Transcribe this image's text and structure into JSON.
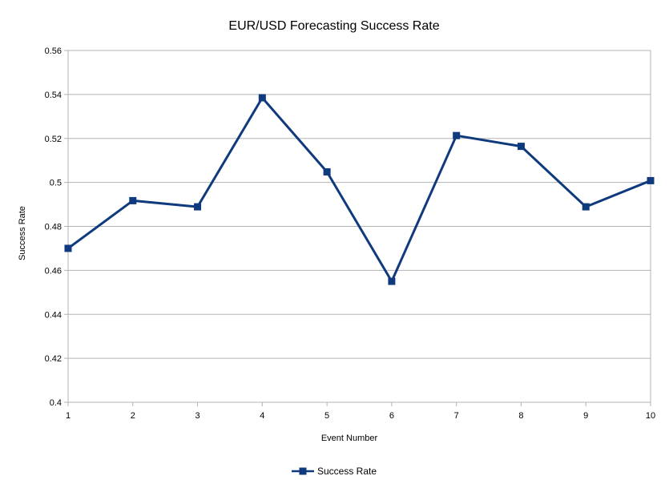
{
  "chart_data": {
    "type": "line",
    "title": "EUR/USD Forecasting Success Rate",
    "xlabel": "Event Number",
    "ylabel": "Success Rate",
    "x": [
      1,
      2,
      3,
      4,
      5,
      6,
      7,
      8,
      9,
      10
    ],
    "xlim": [
      1,
      10
    ],
    "ylim": [
      0.4,
      0.56
    ],
    "yticks": [
      "0.4",
      "0.42",
      "0.44",
      "0.46",
      "0.48",
      "0.5",
      "0.52",
      "0.54",
      "0.56"
    ],
    "xticks": [
      "1",
      "2",
      "3",
      "4",
      "5",
      "6",
      "7",
      "8",
      "9",
      "10"
    ],
    "grid": "horizontal",
    "legend_position": "bottom",
    "series": [
      {
        "name": "Success Rate",
        "values": [
          0.47,
          0.4917,
          0.4889,
          0.5385,
          0.5048,
          0.455,
          0.5213,
          0.5164,
          0.4889,
          0.5008
        ],
        "color": "#0f3a7d",
        "marker": "square"
      }
    ]
  }
}
